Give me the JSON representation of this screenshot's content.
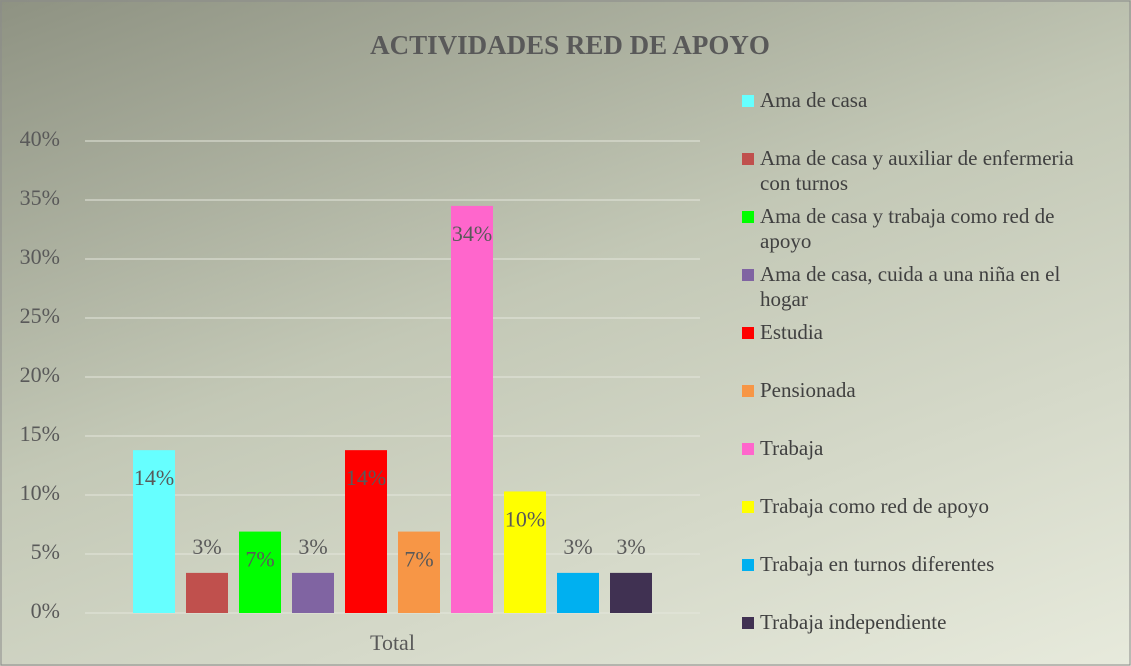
{
  "chart_data": {
    "type": "bar",
    "title": "ACTIVIDADES RED DE APOYO",
    "categories": [
      "Total"
    ],
    "series": [
      {
        "name": "Ama de casa",
        "color": "#66ffff",
        "values": [
          13.8
        ],
        "value_labels": [
          "14%"
        ]
      },
      {
        "name": "Ama de casa y auxiliar de enfermeria con turnos",
        "color": "#c0504d",
        "values": [
          3.4
        ],
        "value_labels": [
          "3%"
        ]
      },
      {
        "name": "Ama de casa y trabaja como red de apoyo",
        "color": "#00ff00",
        "values": [
          6.9
        ],
        "value_labels": [
          "7%"
        ]
      },
      {
        "name": "Ama de casa, cuida a una niña en el hogar",
        "color": "#8064a2",
        "values": [
          3.4
        ],
        "value_labels": [
          "3%"
        ]
      },
      {
        "name": "Estudia",
        "color": "#ff0000",
        "values": [
          13.8
        ],
        "value_labels": [
          "14%"
        ]
      },
      {
        "name": "Pensionada",
        "color": "#f79646",
        "values": [
          6.9
        ],
        "value_labels": [
          "7%"
        ]
      },
      {
        "name": "Trabaja",
        "color": "#ff66cc",
        "values": [
          34.5
        ],
        "value_labels": [
          "34%"
        ]
      },
      {
        "name": "Trabaja como red de apoyo",
        "color": "#ffff00",
        "values": [
          10.3
        ],
        "value_labels": [
          "10%"
        ]
      },
      {
        "name": "Trabaja en turnos diferentes",
        "color": "#00b0f0",
        "values": [
          3.4
        ],
        "value_labels": [
          "3%"
        ]
      },
      {
        "name": "Trabaja independiente",
        "color": "#403152",
        "values": [
          3.4
        ],
        "value_labels": [
          "3%"
        ]
      }
    ],
    "ylim": [
      0,
      40
    ],
    "yticks": [
      {
        "value": 0,
        "label": "0%"
      },
      {
        "value": 5,
        "label": "5%"
      },
      {
        "value": 10,
        "label": "10%"
      },
      {
        "value": 15,
        "label": "15%"
      },
      {
        "value": 20,
        "label": "20%"
      },
      {
        "value": 25,
        "label": "25%"
      },
      {
        "value": 30,
        "label": "30%"
      },
      {
        "value": 35,
        "label": "35%"
      },
      {
        "value": 40,
        "label": "40%"
      }
    ],
    "grid": true,
    "legend": "right"
  }
}
